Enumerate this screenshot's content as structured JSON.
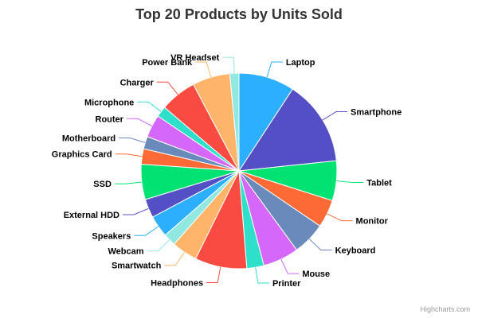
{
  "chart_data": {
    "type": "pie",
    "title": "Top 20 Products by Units Sold",
    "credits": "Highcharts.com",
    "slices": [
      {
        "label": "Laptop",
        "value": 9.8,
        "color": "#2caffe"
      },
      {
        "label": "Smartphone",
        "value": 15.0,
        "color": "#544fc5"
      },
      {
        "label": "Tablet",
        "value": 7.0,
        "color": "#00e272"
      },
      {
        "label": "Monitor",
        "value": 4.9,
        "color": "#fe6a35"
      },
      {
        "label": "Keyboard",
        "value": 5.8,
        "color": "#6b8abc"
      },
      {
        "label": "Mouse",
        "value": 6.3,
        "color": "#d568fb"
      },
      {
        "label": "Printer",
        "value": 3.0,
        "color": "#2ee0ca"
      },
      {
        "label": "Headphones",
        "value": 9.1,
        "color": "#fa4b42"
      },
      {
        "label": "Smartwatch",
        "value": 4.5,
        "color": "#feb56a"
      },
      {
        "label": "Webcam",
        "value": 2.2,
        "color": "#91e8e1"
      },
      {
        "label": "Speakers",
        "value": 3.8,
        "color": "#2caffe"
      },
      {
        "label": "External HDD",
        "value": 3.3,
        "color": "#544fc5"
      },
      {
        "label": "SSD",
        "value": 6.2,
        "color": "#00e272"
      },
      {
        "label": "Graphics Card",
        "value": 2.7,
        "color": "#fe6a35"
      },
      {
        "label": "Motherboard",
        "value": 2.2,
        "color": "#6b8abc"
      },
      {
        "label": "Router",
        "value": 4.0,
        "color": "#d568fb"
      },
      {
        "label": "Microphone",
        "value": 1.9,
        "color": "#2ee0ca"
      },
      {
        "label": "Charger",
        "value": 6.4,
        "color": "#fa4b42"
      },
      {
        "label": "Power Bank",
        "value": 6.6,
        "color": "#feb56a"
      },
      {
        "label": "VR Headset",
        "value": 1.6,
        "color": "#91e8e1"
      }
    ]
  }
}
